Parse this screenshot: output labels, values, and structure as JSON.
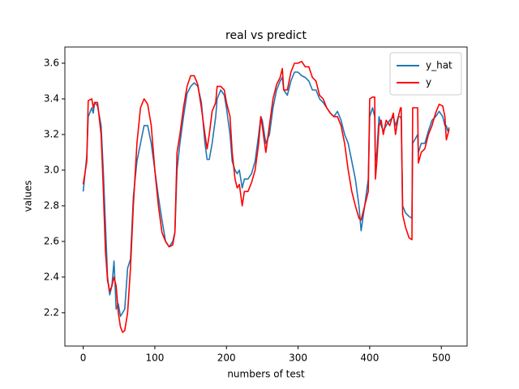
{
  "chart_data": {
    "type": "line",
    "title": "real vs predict",
    "x_label": "numbers of test",
    "y_label": "values",
    "x": [
      0,
      5,
      7,
      12,
      14,
      16,
      20,
      25,
      28,
      31,
      34,
      37,
      40,
      43,
      46,
      49,
      52,
      55,
      58,
      62,
      66,
      70,
      75,
      80,
      85,
      90,
      95,
      100,
      105,
      110,
      115,
      120,
      125,
      128,
      131,
      135,
      140,
      145,
      150,
      155,
      160,
      165,
      170,
      173,
      176,
      180,
      185,
      187,
      192,
      197,
      200,
      205,
      208,
      212,
      215,
      218,
      222,
      225,
      230,
      235,
      240,
      245,
      248,
      250,
      255,
      260,
      265,
      270,
      275,
      278,
      280,
      285,
      290,
      295,
      300,
      305,
      310,
      315,
      320,
      325,
      330,
      335,
      340,
      345,
      350,
      355,
      360,
      365,
      370,
      375,
      380,
      385,
      388,
      393,
      398,
      400,
      404,
      407,
      408,
      410,
      413,
      416,
      419,
      423,
      428,
      433,
      436,
      440,
      443,
      444,
      446,
      450,
      455,
      459,
      460,
      467,
      468,
      472,
      477,
      482,
      487,
      492,
      497,
      502,
      505,
      507,
      509,
      511
    ],
    "series": [
      {
        "name": "y_hat",
        "color": "#1f77b4",
        "values": [
          2.88,
          3.08,
          3.3,
          3.35,
          3.32,
          3.38,
          3.36,
          3.25,
          3.0,
          2.7,
          2.4,
          2.3,
          2.35,
          2.49,
          2.22,
          2.25,
          2.18,
          2.2,
          2.22,
          2.45,
          2.5,
          2.85,
          3.05,
          3.15,
          3.25,
          3.25,
          3.15,
          3.0,
          2.85,
          2.72,
          2.6,
          2.57,
          2.6,
          2.65,
          3.0,
          3.15,
          3.3,
          3.43,
          3.47,
          3.49,
          3.47,
          3.38,
          3.15,
          3.06,
          3.06,
          3.15,
          3.3,
          3.4,
          3.45,
          3.42,
          3.35,
          3.2,
          3.05,
          3.0,
          2.98,
          3.0,
          2.9,
          2.95,
          2.95,
          2.98,
          3.05,
          3.2,
          3.3,
          3.28,
          3.15,
          3.2,
          3.35,
          3.45,
          3.5,
          3.52,
          3.45,
          3.42,
          3.5,
          3.55,
          3.55,
          3.53,
          3.52,
          3.5,
          3.45,
          3.45,
          3.4,
          3.38,
          3.35,
          3.32,
          3.3,
          3.33,
          3.28,
          3.2,
          3.15,
          3.05,
          2.95,
          2.8,
          2.66,
          2.8,
          2.95,
          3.3,
          3.35,
          3.3,
          3.05,
          3.1,
          3.3,
          3.25,
          3.22,
          3.25,
          3.28,
          3.3,
          3.25,
          3.3,
          3.3,
          3.28,
          2.8,
          2.76,
          2.74,
          2.73,
          3.15,
          3.2,
          3.1,
          3.15,
          3.15,
          3.22,
          3.28,
          3.3,
          3.33,
          3.3,
          3.25,
          3.25,
          3.22,
          3.24
        ]
      },
      {
        "name": "y",
        "color": "#ff0000",
        "values": [
          2.92,
          3.05,
          3.39,
          3.4,
          3.35,
          3.38,
          3.38,
          3.2,
          2.9,
          2.55,
          2.38,
          2.32,
          2.35,
          2.4,
          2.35,
          2.2,
          2.12,
          2.09,
          2.1,
          2.2,
          2.45,
          2.8,
          3.15,
          3.35,
          3.4,
          3.37,
          3.25,
          3.0,
          2.8,
          2.65,
          2.6,
          2.57,
          2.58,
          2.65,
          3.1,
          3.2,
          3.35,
          3.47,
          3.53,
          3.53,
          3.48,
          3.35,
          3.2,
          3.12,
          3.2,
          3.33,
          3.38,
          3.47,
          3.47,
          3.45,
          3.38,
          3.3,
          3.1,
          2.95,
          2.9,
          2.92,
          2.8,
          2.88,
          2.88,
          2.93,
          3.0,
          3.15,
          3.3,
          3.25,
          3.1,
          3.25,
          3.4,
          3.48,
          3.52,
          3.57,
          3.45,
          3.45,
          3.55,
          3.6,
          3.6,
          3.61,
          3.58,
          3.58,
          3.52,
          3.5,
          3.42,
          3.4,
          3.35,
          3.32,
          3.3,
          3.3,
          3.25,
          3.15,
          3.0,
          2.88,
          2.8,
          2.73,
          2.72,
          2.8,
          2.88,
          3.4,
          3.41,
          3.41,
          2.95,
          3.05,
          3.25,
          3.28,
          3.2,
          3.28,
          3.25,
          3.32,
          3.2,
          3.3,
          3.35,
          3.35,
          2.75,
          2.68,
          2.62,
          2.61,
          3.35,
          3.35,
          3.04,
          3.1,
          3.12,
          3.2,
          3.25,
          3.32,
          3.37,
          3.36,
          3.3,
          3.17,
          3.2,
          3.23
        ]
      }
    ],
    "xlim": [
      -25.6,
      536
    ],
    "ylim": [
      2.013,
      3.691
    ],
    "xticks": [
      0,
      100,
      200,
      300,
      400,
      500
    ],
    "yticks": [
      2.2,
      2.4,
      2.6,
      2.8,
      {
        "value": 3,
        "label": "3.0"
      },
      3.2,
      3.4,
      3.6
    ],
    "legend": "upper right"
  }
}
